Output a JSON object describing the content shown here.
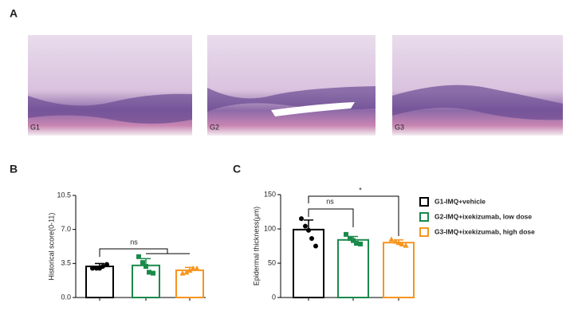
{
  "panels": [
    "A",
    "B",
    "C"
  ],
  "images": [
    {
      "label": "G1"
    },
    {
      "label": "G2"
    },
    {
      "label": "G3"
    }
  ],
  "chart_data": [
    {
      "type": "bar",
      "ylabel": "Historical score(0-11)",
      "categories": [
        null,
        null,
        null
      ],
      "values": [
        3.2,
        3.3,
        2.8
      ],
      "errors": [
        0.3,
        0.7,
        0.3
      ],
      "points": [
        [
          3.0,
          3.0,
          3.0,
          3.2,
          3.4
        ],
        [
          4.2,
          3.6,
          3.2,
          2.6,
          2.5
        ],
        [
          2.5,
          2.6,
          2.8,
          3.0,
          3.0
        ]
      ],
      "colors": [
        "#000000",
        "#1a8a4a",
        "#f7941d"
      ],
      "ylim": [
        0,
        10.5
      ],
      "yticks": [
        {
          "value": 0,
          "label": "0.0"
        },
        3.5,
        {
          "value": 7,
          "label": "7.0"
        },
        10.5
      ],
      "annotations": [
        "ns"
      ]
    },
    {
      "type": "bar",
      "ylabel": "Epidermal thickness(μm)",
      "categories": [
        null,
        null,
        null
      ],
      "values": [
        99,
        84,
        80
      ],
      "errors": [
        14,
        5,
        4
      ],
      "points": [
        [
          115,
          104,
          98,
          86,
          75
        ],
        [
          92,
          86,
          83,
          79,
          78
        ],
        [
          85,
          82,
          80,
          78,
          76
        ]
      ],
      "colors": [
        "#000000",
        "#1a8a4a",
        "#f7941d"
      ],
      "ylim": [
        0,
        150
      ],
      "yticks": [
        0,
        50,
        100,
        150
      ],
      "annotations": [
        "ns",
        "*"
      ],
      "legend": [
        "G1-IMQ+vehicle",
        "G2-IMQ+ixekizumab, low dose",
        "G3-IMQ+ixekizumab, high dose"
      ]
    }
  ]
}
